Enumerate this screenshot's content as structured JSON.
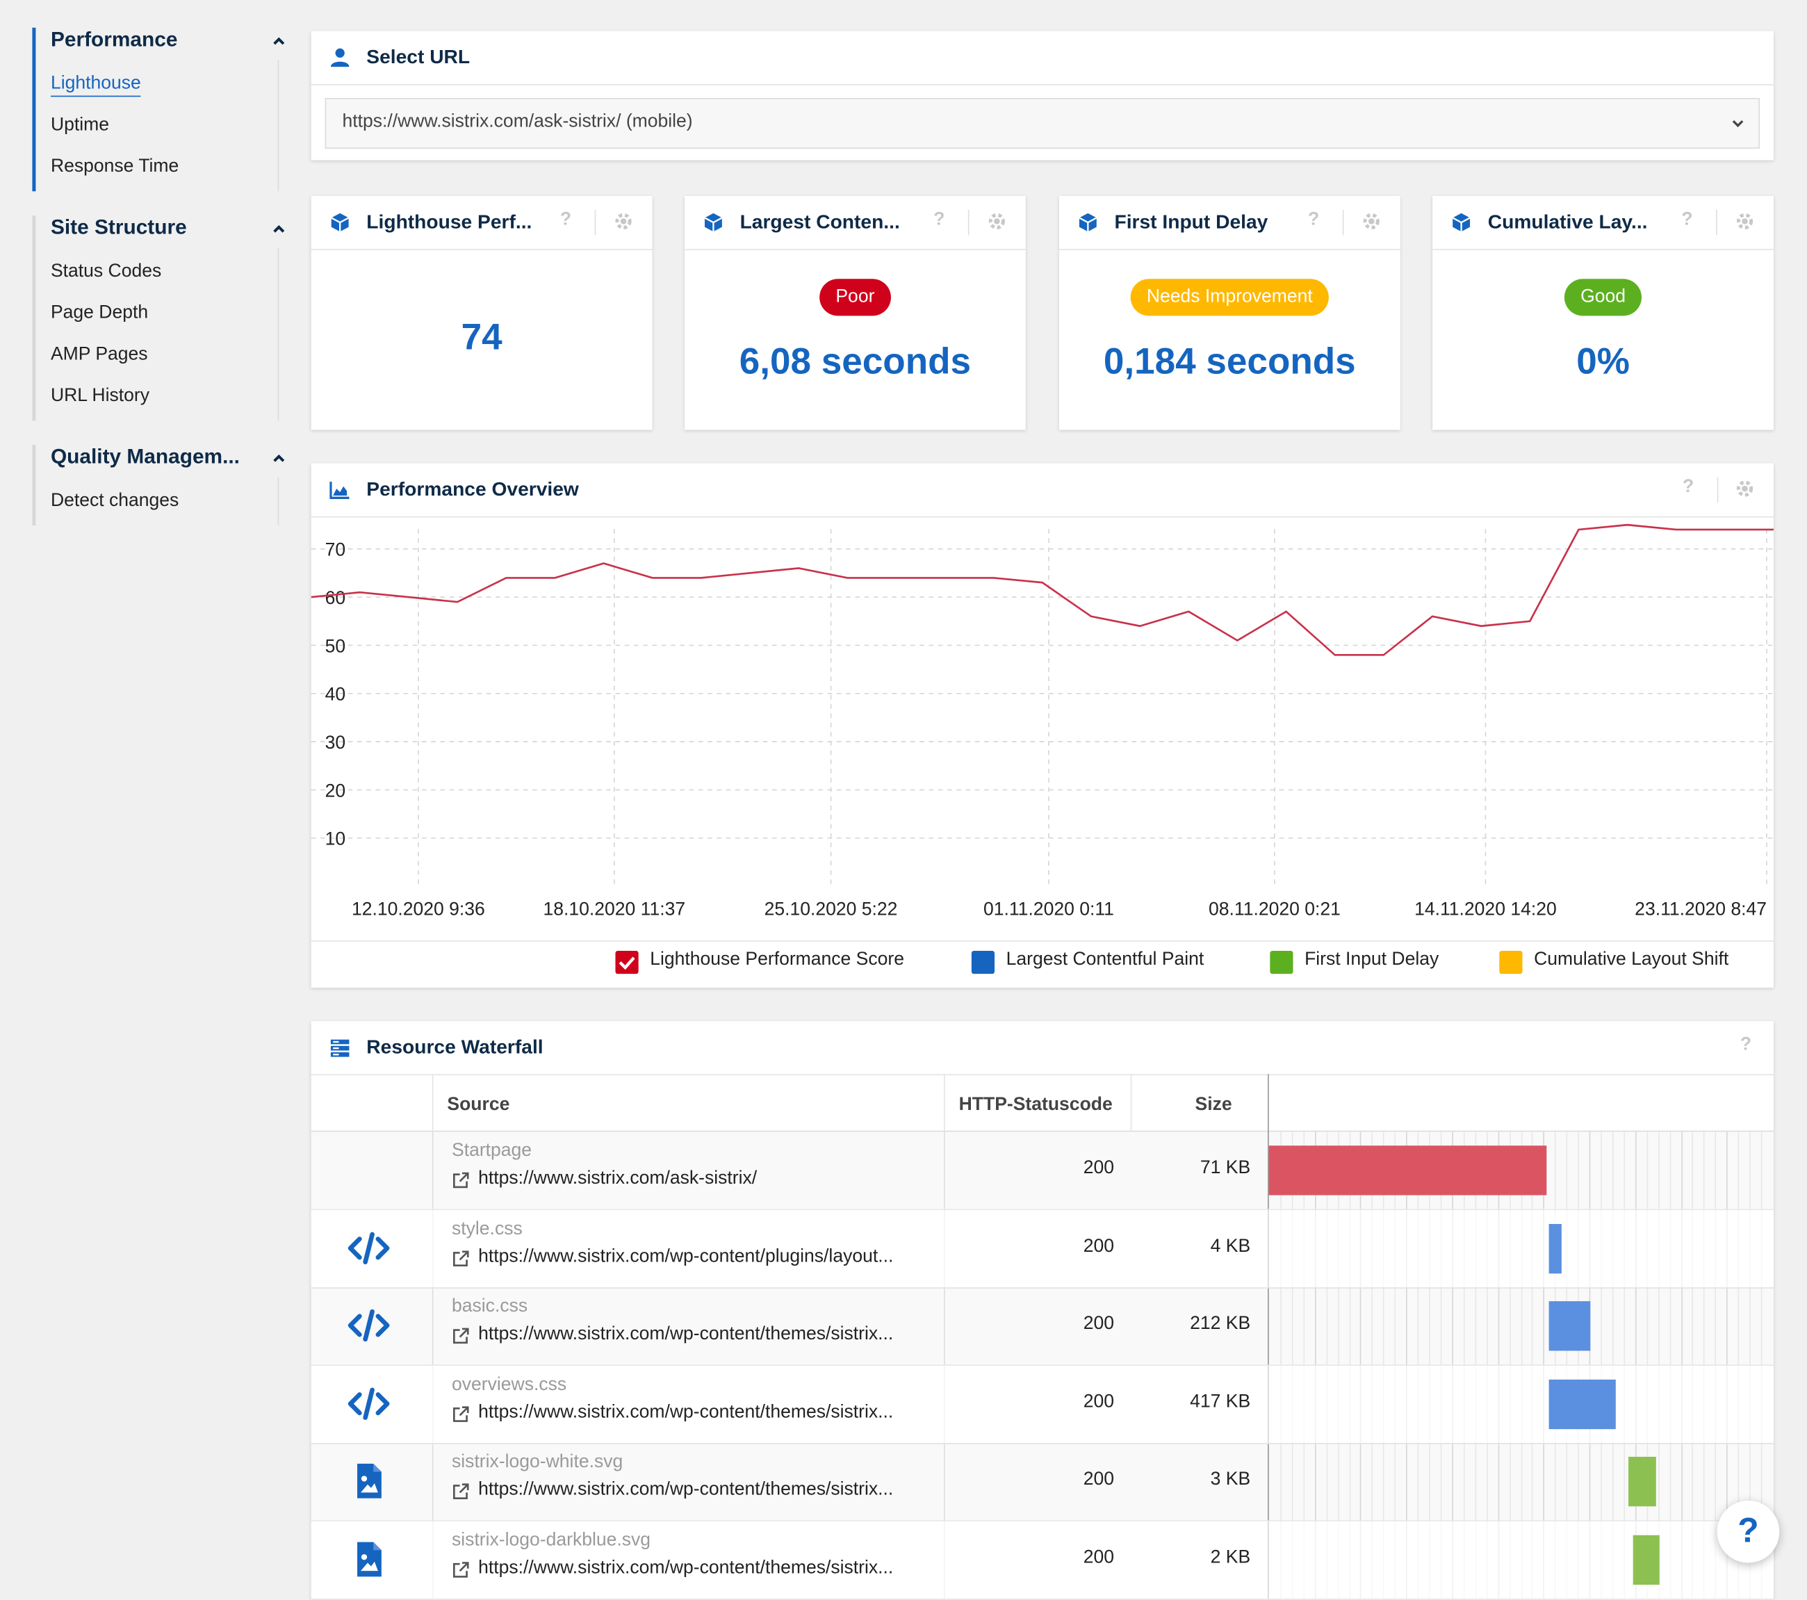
{
  "sidebar": {
    "sections": [
      {
        "title": "Performance",
        "items": [
          "Lighthouse",
          "Uptime",
          "Response Time"
        ]
      },
      {
        "title": "Site Structure",
        "items": [
          "Status Codes",
          "Page Depth",
          "AMP Pages",
          "URL History"
        ]
      },
      {
        "title": "Quality Managem...",
        "items": [
          "Detect changes"
        ]
      }
    ],
    "selected_item": "Lighthouse"
  },
  "select_url": {
    "title": "Select URL",
    "value": "https://www.sistrix.com/ask-sistrix/ (mobile)"
  },
  "metrics": [
    {
      "title": "Lighthouse Perf...",
      "badge": "",
      "value": "74"
    },
    {
      "title": "Largest Conten...",
      "badge": "Poor",
      "badge_color": "#d0021b",
      "value": "6,08 seconds"
    },
    {
      "title": "First Input Delay",
      "badge": "Needs Improvement",
      "badge_color": "#ffb800",
      "value": "0,184 seconds"
    },
    {
      "title": "Cumulative Lay...",
      "badge": "Good",
      "badge_color": "#5cb01f",
      "value": "0%"
    }
  ],
  "help_mark": "?",
  "overview": {
    "title": "Performance Overview"
  },
  "chart_data": {
    "type": "line",
    "title": "",
    "yticks": [
      10,
      20,
      30,
      40,
      50,
      60,
      70
    ],
    "ylim": [
      0,
      77
    ],
    "xticks": [
      "12.10.2020 9:36",
      "18.10.2020 11:37",
      "25.10.2020 5:22",
      "01.11.2020 0:11",
      "08.11.2020 0:21",
      "14.11.2020 14:20",
      "23.11.2020 8:47"
    ],
    "grid": true,
    "legend_position": "bottom",
    "legend": [
      {
        "name": "Lighthouse Performance Score",
        "color": "#d0021b",
        "checked": true
      },
      {
        "name": "Largest Contentful Paint",
        "color": "#1565c0",
        "checked": false
      },
      {
        "name": "First Input Delay",
        "color": "#5cb01f",
        "checked": false
      },
      {
        "name": "Cumulative Layout Shift",
        "color": "#ffb800",
        "checked": false
      }
    ],
    "series": [
      {
        "name": "Lighthouse Performance Score",
        "color": "#c8324b",
        "values": [
          60,
          61,
          60,
          59,
          64,
          64,
          67,
          64,
          64,
          65,
          66,
          64,
          64,
          64,
          64,
          63,
          56,
          54,
          57,
          51,
          57,
          48,
          48,
          56,
          54,
          55,
          74,
          75,
          74,
          74,
          74
        ]
      }
    ]
  },
  "waterfall": {
    "title": "Resource Waterfall",
    "columns": [
      "Source",
      "HTTP-Statuscode",
      "Size"
    ],
    "rows": [
      {
        "label": "Startpage",
        "url": "https://www.sistrix.com/ask-sistrix/",
        "status": "200",
        "size": "71 KB",
        "icon": "none",
        "start": 0.0,
        "duration": 0.552,
        "color": "#db5462"
      },
      {
        "label": "style.css",
        "url": "https://www.sistrix.com/wp-content/plugins/layout...",
        "status": "200",
        "size": "4 KB",
        "icon": "code-icon",
        "start": 0.555,
        "duration": 0.027,
        "color": "#5b8fe0"
      },
      {
        "label": "basic.css",
        "url": "https://www.sistrix.com/wp-content/themes/sistrix...",
        "status": "200",
        "size": "212 KB",
        "icon": "code-icon",
        "start": 0.555,
        "duration": 0.084,
        "color": "#5b8fe0"
      },
      {
        "label": "overviews.css",
        "url": "https://www.sistrix.com/wp-content/themes/sistrix...",
        "status": "200",
        "size": "417 KB",
        "icon": "code-icon",
        "start": 0.555,
        "duration": 0.134,
        "color": "#5b8fe0"
      },
      {
        "label": "sistrix-logo-white.svg",
        "url": "https://www.sistrix.com/wp-content/themes/sistrix...",
        "status": "200",
        "size": "3 KB",
        "icon": "image-file-icon",
        "start": 0.715,
        "duration": 0.055,
        "color": "#8cc152"
      },
      {
        "label": "sistrix-logo-darkblue.svg",
        "url": "https://www.sistrix.com/wp-content/themes/sistrix...",
        "status": "200",
        "size": "2 KB",
        "icon": "image-file-icon",
        "start": 0.722,
        "duration": 0.053,
        "color": "#8cc152"
      }
    ]
  }
}
